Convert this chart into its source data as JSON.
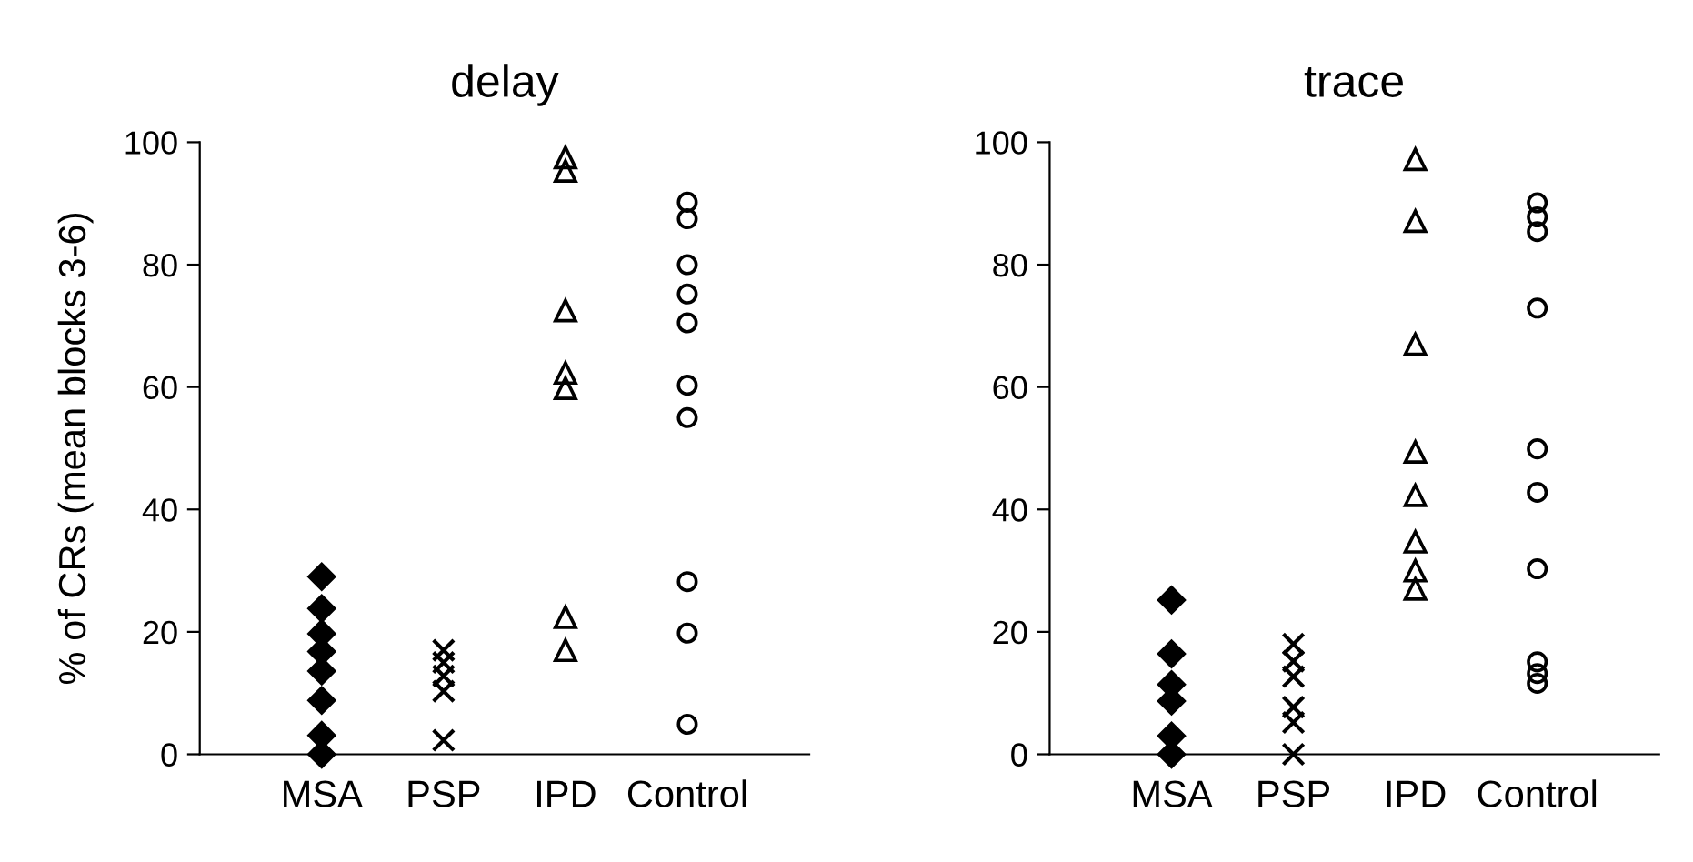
{
  "chart_data": [
    {
      "type": "scatter",
      "title": "delay",
      "ylabel": "% of CRs (mean blocks 3-6)",
      "categories": [
        "MSA",
        "PSP",
        "IPD",
        "Control"
      ],
      "ylim": [
        0,
        100
      ],
      "yticks": [
        0,
        20,
        40,
        60,
        80,
        100
      ],
      "grid": false,
      "legend": false,
      "series": [
        {
          "color": "#000000",
          "marker": "diamond",
          "x": [
            "MSA",
            "MSA",
            "MSA",
            "MSA",
            "MSA",
            "MSA",
            "MSA",
            "MSA"
          ],
          "values": [
            29,
            23.8,
            19.7,
            16.8,
            13.6,
            8.8,
            3.1,
            0
          ]
        },
        {
          "color": "#000000",
          "marker": "cross",
          "x": [
            "PSP",
            "PSP",
            "PSP",
            "PSP",
            "PSP"
          ],
          "values": [
            17,
            15,
            12.8,
            10.3,
            2.3
          ]
        },
        {
          "color": "#000000",
          "marker": "triangle",
          "x": [
            "IPD",
            "IPD",
            "IPD",
            "IPD",
            "IPD",
            "IPD",
            "IPD"
          ],
          "values": [
            97.5,
            95.3,
            72.5,
            62.3,
            59.8,
            22.4,
            17
          ]
        },
        {
          "color": "#000000",
          "marker": "circle",
          "x": [
            "Control",
            "Control",
            "Control",
            "Control",
            "Control",
            "Control",
            "Control",
            "Control",
            "Control",
            "Control"
          ],
          "values": [
            90.2,
            87.5,
            80,
            75.2,
            70.5,
            60.3,
            55,
            28.2,
            19.8,
            4.9
          ]
        }
      ]
    },
    {
      "type": "scatter",
      "title": "trace",
      "categories": [
        "MSA",
        "PSP",
        "IPD",
        "Control"
      ],
      "ylim": [
        0,
        100
      ],
      "yticks": [
        0,
        20,
        40,
        60,
        80,
        100
      ],
      "grid": false,
      "legend": false,
      "series": [
        {
          "color": "#000000",
          "marker": "diamond",
          "x": [
            "MSA",
            "MSA",
            "MSA",
            "MSA",
            "MSA",
            "MSA"
          ],
          "values": [
            25.2,
            16.4,
            11.4,
            8.7,
            3,
            0
          ]
        },
        {
          "color": "#000000",
          "marker": "cross",
          "x": [
            "PSP",
            "PSP",
            "PSP",
            "PSP",
            "PSP",
            "PSP"
          ],
          "values": [
            18,
            15.2,
            12.7,
            7.7,
            5.2,
            0
          ]
        },
        {
          "color": "#000000",
          "marker": "triangle",
          "x": [
            "IPD",
            "IPD",
            "IPD",
            "IPD",
            "IPD",
            "IPD",
            "IPD",
            "IPD"
          ],
          "values": [
            97.2,
            87.1,
            67,
            49.4,
            42.3,
            34.7,
            30,
            27
          ]
        },
        {
          "color": "#000000",
          "marker": "circle",
          "x": [
            "Control",
            "Control",
            "Control",
            "Control",
            "Control",
            "Control",
            "Control",
            "Control",
            "Control",
            "Control"
          ],
          "values": [
            90.1,
            87.8,
            85.4,
            72.9,
            49.9,
            42.8,
            30.3,
            15.1,
            13.2,
            11.6
          ]
        }
      ]
    }
  ]
}
